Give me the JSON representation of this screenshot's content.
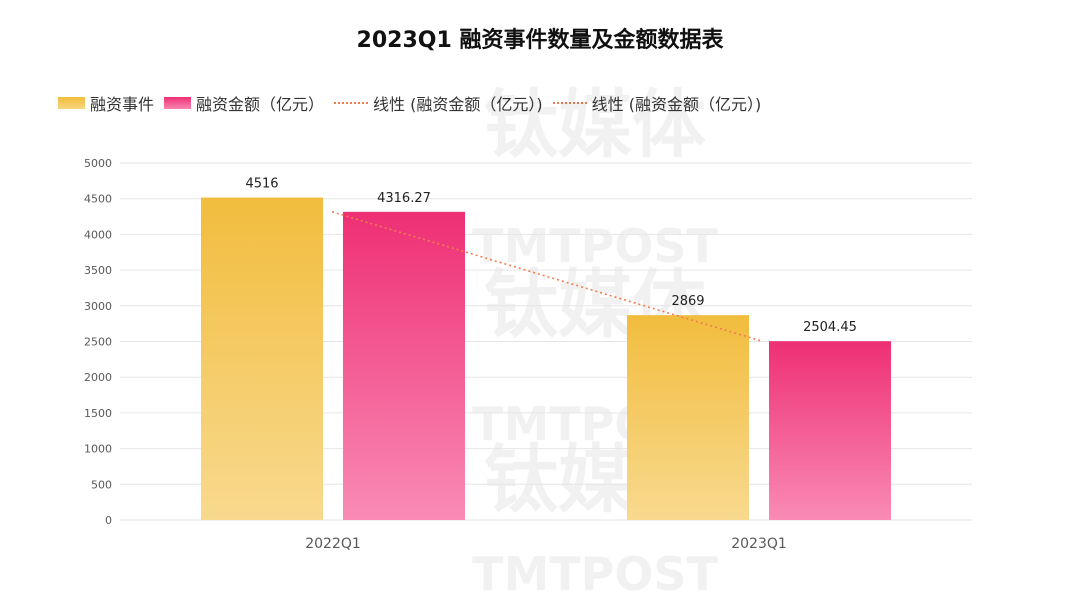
{
  "chart_data": {
    "type": "bar",
    "title": "2023Q1 融资事件数量及金额数据表",
    "categories": [
      "2022Q1",
      "2023Q1"
    ],
    "series": [
      {
        "name": "融资事件",
        "values": [
          4516,
          2869
        ],
        "labels": [
          "4516",
          "2869"
        ],
        "color_top": "#f2bd3e",
        "color_bottom": "#f8d98e"
      },
      {
        "name": "融资金额（亿元）",
        "values": [
          4316.27,
          2504.45
        ],
        "labels": [
          "4316.27",
          "2504.45"
        ],
        "color_top": "#ee2f74",
        "color_bottom": "#f98bb5"
      }
    ],
    "trendlines": [
      {
        "name": "线性 (融资金额（亿元）)",
        "series": 1,
        "type": "linear",
        "color": "#f07c4f"
      },
      {
        "name": "线性 (融资金额（亿元）)",
        "series": 1,
        "type": "linear",
        "color": "#f07c4f"
      }
    ],
    "ylim": [
      0,
      5000
    ],
    "yticks": [
      0,
      500,
      1000,
      1500,
      2000,
      2500,
      3000,
      3500,
      4000,
      4500,
      5000
    ],
    "grid": true,
    "legend_position": "top-left",
    "xlabel": "",
    "ylabel": ""
  },
  "watermark": {
    "brand_cn": "钛媒体",
    "brand_en": "TMTPOST"
  }
}
